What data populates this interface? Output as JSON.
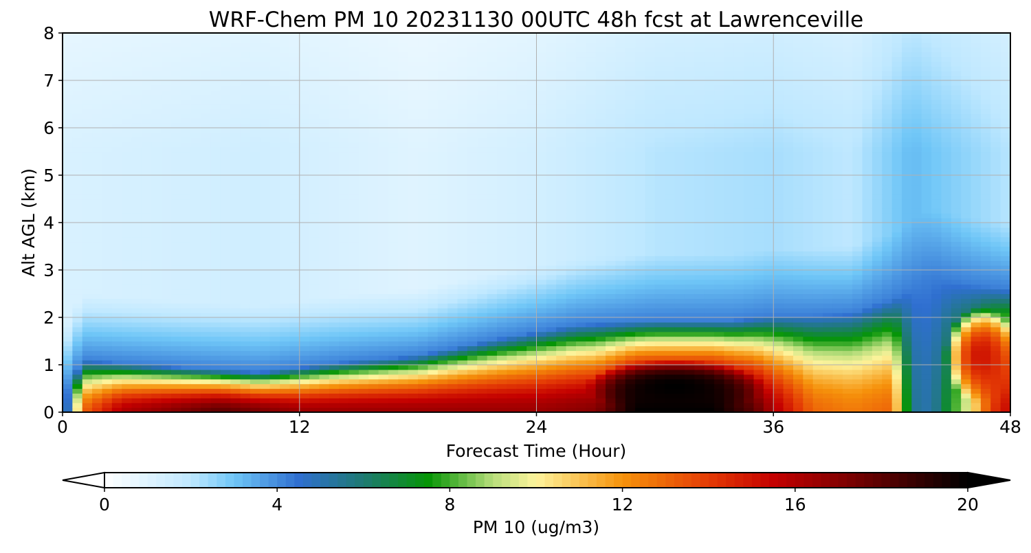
{
  "chart_data": {
    "type": "heatmap",
    "title": "WRF-Chem PM 10  20231130 00UTC 48h fcst at Lawrenceville",
    "xlabel": "Forecast Time (Hour)",
    "ylabel": "Alt AGL (km)",
    "xlim": [
      0,
      48
    ],
    "ylim": [
      0,
      8
    ],
    "xticks": [
      0,
      12,
      24,
      36,
      48
    ],
    "yticks": [
      0,
      1,
      2,
      3,
      4,
      5,
      6,
      7,
      8
    ],
    "grid": true,
    "colorbar": {
      "label": "PM 10  (ug/m3)",
      "min": 0,
      "max": 20,
      "ticks": [
        0,
        4,
        8,
        12,
        16,
        20
      ],
      "extend": "both",
      "placement": "bottom",
      "colors": [
        {
          "v": 0,
          "c": "#ffffff"
        },
        {
          "v": 2,
          "c": "#bfe8ff"
        },
        {
          "v": 3,
          "c": "#6fc6f7"
        },
        {
          "v": 4.5,
          "c": "#2f6fd0"
        },
        {
          "v": 6,
          "c": "#1e7a72"
        },
        {
          "v": 7.5,
          "c": "#069506"
        },
        {
          "v": 9,
          "c": "#b8de7c"
        },
        {
          "v": 10,
          "c": "#fef49c"
        },
        {
          "v": 12,
          "c": "#f6920b"
        },
        {
          "v": 14,
          "c": "#e43b05"
        },
        {
          "v": 15.5,
          "c": "#c40000"
        },
        {
          "v": 17,
          "c": "#860000"
        },
        {
          "v": 20,
          "c": "#000000"
        }
      ]
    },
    "surface_max": [
      {
        "x": 0,
        "v": 2
      },
      {
        "x": 1,
        "v": 13
      },
      {
        "x": 3,
        "v": 16
      },
      {
        "x": 8,
        "v": 18
      },
      {
        "x": 12,
        "v": 16.5
      },
      {
        "x": 18,
        "v": 16.5
      },
      {
        "x": 24,
        "v": 16.5
      },
      {
        "x": 27,
        "v": 17
      },
      {
        "x": 29,
        "v": 20
      },
      {
        "x": 33,
        "v": 20
      },
      {
        "x": 35,
        "v": 18
      },
      {
        "x": 36,
        "v": 16
      },
      {
        "x": 38,
        "v": 13
      },
      {
        "x": 40,
        "v": 12.5
      },
      {
        "x": 42,
        "v": 13
      },
      {
        "x": 43,
        "v": 5.5
      },
      {
        "x": 44,
        "v": 5
      },
      {
        "x": 46,
        "v": 10
      },
      {
        "x": 47,
        "v": 14
      },
      {
        "x": 48,
        "v": 15.5
      }
    ],
    "layer_depth_km": [
      {
        "x": 0,
        "d": 0.3
      },
      {
        "x": 1,
        "d": 1.1
      },
      {
        "x": 6,
        "d": 0.95
      },
      {
        "x": 10,
        "d": 0.85
      },
      {
        "x": 14,
        "d": 1.05
      },
      {
        "x": 18,
        "d": 1.2
      },
      {
        "x": 22,
        "d": 1.55
      },
      {
        "x": 26,
        "d": 1.85
      },
      {
        "x": 30,
        "d": 1.95
      },
      {
        "x": 34,
        "d": 1.95
      },
      {
        "x": 36,
        "d": 2.05
      },
      {
        "x": 38,
        "d": 2.05
      },
      {
        "x": 40,
        "d": 2.1
      },
      {
        "x": 42,
        "d": 2.4
      },
      {
        "x": 44,
        "d": 2.9
      },
      {
        "x": 46,
        "d": 2.7
      },
      {
        "x": 48,
        "d": 2.6
      }
    ],
    "upper_background": [
      {
        "x": 0,
        "v": 1.2
      },
      {
        "x": 10,
        "v": 1.5
      },
      {
        "x": 18,
        "v": 1.0
      },
      {
        "x": 24,
        "v": 1.4
      },
      {
        "x": 30,
        "v": 2.1
      },
      {
        "x": 36,
        "v": 2.3
      },
      {
        "x": 40,
        "v": 2.0
      },
      {
        "x": 43,
        "v": 3.2
      },
      {
        "x": 48,
        "v": 2.1
      }
    ],
    "dark_cores": [
      {
        "x": 31,
        "y": 0.55,
        "rx": 4.5,
        "ry": 0.55,
        "v": 20
      },
      {
        "x": 46.5,
        "y": 1.2,
        "rx": 1.8,
        "ry": 1.0,
        "v": 15
      }
    ]
  }
}
